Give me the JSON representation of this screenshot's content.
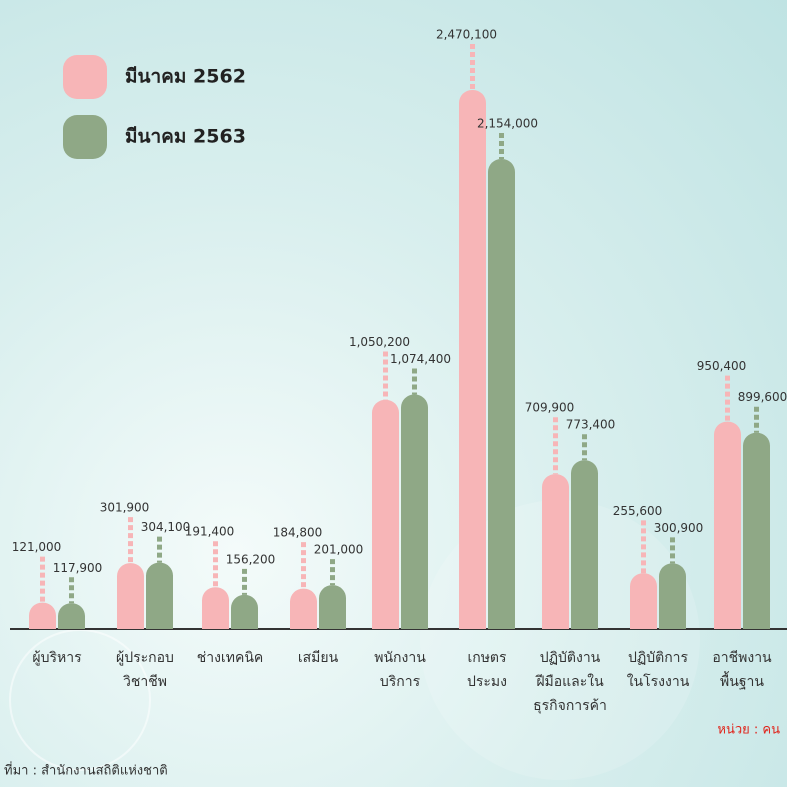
{
  "chart_data": {
    "type": "bar",
    "categories": [
      "ผู้บริหาร",
      "ผู้ประกอบ\nวิชาชีพ",
      "ช่างเทคนิค",
      "เสมียน",
      "พนักงาน\nบริการ",
      "เกษตร\nประมง",
      "ปฏิบัติงาน\nฝีมือและใน\nธุรกิจการค้า",
      "ปฏิบัติการ\nในโรงงาน",
      "อาชีพงาน\nพื้นฐาน"
    ],
    "series": [
      {
        "name": "มีนาคม 2562",
        "color": "#f7b5b7",
        "values": [
          121000,
          301900,
          191400,
          184800,
          1050200,
          2470100,
          709900,
          255600,
          950400
        ],
        "value_labels": [
          "121,000",
          "301,900",
          "191,400",
          "184,800",
          "1,050,200",
          "2,470,100",
          "709,900",
          "255,600",
          "950,400"
        ]
      },
      {
        "name": "มีนาคม 2563",
        "color": "#8fa886",
        "values": [
          117900,
          304100,
          156200,
          201000,
          1074400,
          2154000,
          773400,
          300900,
          899600
        ],
        "value_labels": [
          "117,900",
          "304,100",
          "156,200",
          "201,000",
          "1,074,400",
          "2,154,000",
          "773,400",
          "300,900",
          "899,600"
        ]
      }
    ],
    "unit": "หน่วย : คน",
    "source": "ที่มา : สำนักงานสถิติแห่งชาติ"
  }
}
